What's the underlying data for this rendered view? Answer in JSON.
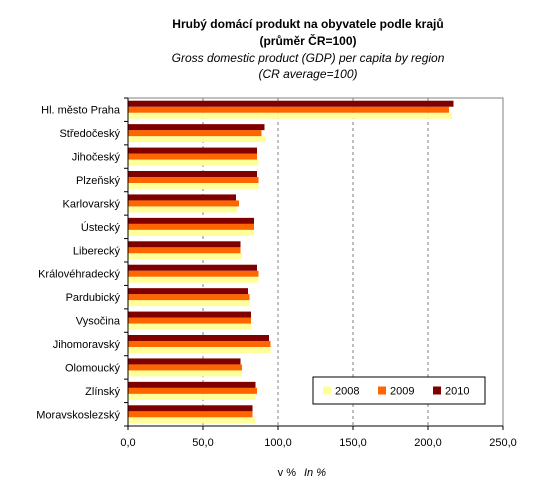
{
  "chart_data": {
    "type": "bar",
    "orientation": "horizontal",
    "title_cz_line1": "Hrubý domácí produkt na obyvatele podle krajů",
    "title_cz_line2": "(průměr ČR=100)",
    "title_en_line1": "Gross domestic product (GDP) per capita by region",
    "title_en_line2": "(CR average=100)",
    "xlabel_cz": "v %",
    "xlabel_en": "In %",
    "xlim": [
      0,
      250
    ],
    "x_ticks": [
      "0,0",
      "50,0",
      "100,0",
      "150,0",
      "200,0",
      "250,0"
    ],
    "grid": "vertical dashed",
    "legend_position": "bottom-right",
    "categories": [
      "Hl. město Praha",
      "Středočeský",
      "Jihočeský",
      "Plzeňský",
      "Karlovarský",
      "Ústecký",
      "Liberecký",
      "Královéhradecký",
      "Pardubický",
      "Vysočina",
      "Jihomoravský",
      "Olomoucký",
      "Zlínský",
      "Moravskoslezský"
    ],
    "series": [
      {
        "name": "2008",
        "color": "#FFFF99",
        "values": [
          216,
          92,
          87,
          87,
          73,
          84,
          76,
          87,
          81,
          82,
          95,
          76,
          85,
          85
        ]
      },
      {
        "name": "2009",
        "color": "#FF6600",
        "values": [
          214,
          89,
          86,
          87,
          74,
          84,
          75,
          87,
          81,
          82,
          95,
          76,
          86,
          83
        ]
      },
      {
        "name": "2010",
        "color": "#800000",
        "values": [
          217,
          91,
          86,
          86,
          72,
          84,
          75,
          86,
          80,
          82,
          94,
          75,
          85,
          83
        ]
      }
    ]
  }
}
